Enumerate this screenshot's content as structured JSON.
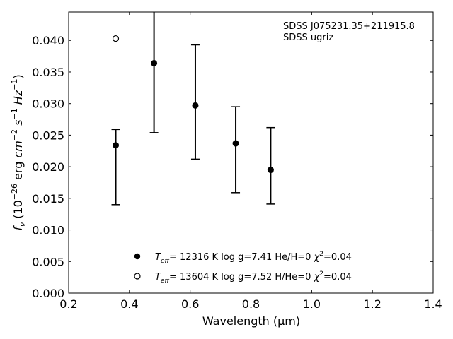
{
  "chart_data": {
    "type": "scatter",
    "xlabel": "Wavelength (μm)",
    "ylabel": "f_ν (10^-26 erg cm^-2 s^-1 Hz^-1)",
    "xlim": [
      0.2,
      1.4
    ],
    "ylim": [
      0.0,
      0.0445
    ],
    "x_ticks": [
      "0.2",
      "0.4",
      "0.6",
      "0.8",
      "1.0",
      "1.2",
      "1.4"
    ],
    "y_ticks": [
      "0.000",
      "0.005",
      "0.010",
      "0.015",
      "0.020",
      "0.025",
      "0.030",
      "0.035",
      "0.040"
    ],
    "grid": false,
    "annotation": {
      "line1": "SDSS J075231.35+211915.8",
      "line2": "SDSS ugriz"
    },
    "observed": {
      "x": [
        0.355,
        0.481,
        0.617,
        0.75,
        0.865
      ],
      "y": [
        0.0234,
        0.0364,
        0.0297,
        0.0237,
        0.0195
      ],
      "yerr_low": [
        0.014,
        0.0254,
        0.0212,
        0.0159,
        0.0141
      ],
      "yerr_high": [
        0.0259,
        0.0445,
        0.0393,
        0.0295,
        0.0262
      ]
    },
    "series": [
      {
        "marker": "filled",
        "teff_label": "= 12316 K",
        "rest": "log g=7.41  He/H=0  ",
        "chi2": "=0.04",
        "x": [],
        "y": []
      },
      {
        "marker": "open",
        "teff_label": "= 13604 K",
        "rest": "log g=7.52  H/He=0  ",
        "chi2": "=0.04",
        "x": [
          0.355
        ],
        "y": [
          0.0403
        ]
      }
    ]
  }
}
